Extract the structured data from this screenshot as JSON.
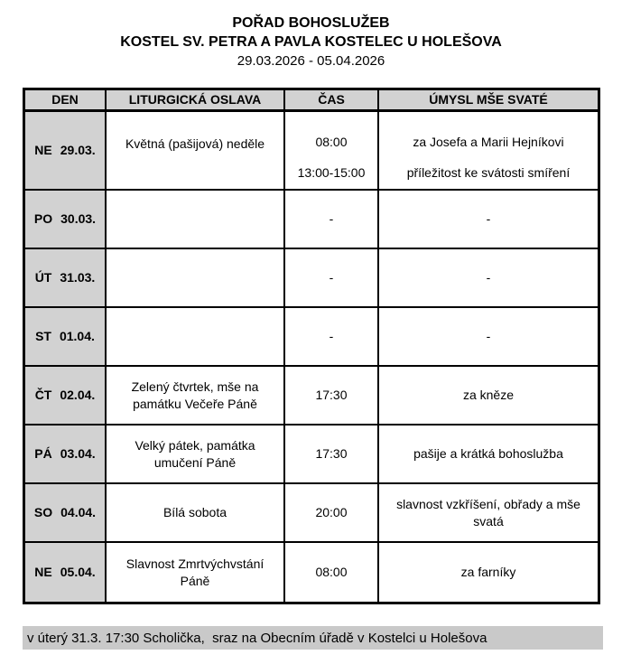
{
  "header": {
    "title": "POŘAD BOHOSLUŽEB",
    "subtitle": "KOSTEL SV. PETRA A PAVLA KOSTELEC U HOLEŠOVA",
    "date_range": "29.03.2026 - 05.04.2026"
  },
  "table": {
    "columns": [
      "DEN",
      "LITURGICKÁ OSLAVA",
      "ČAS",
      "ÚMYSL MŠE SVATÉ"
    ],
    "rows": [
      {
        "day": "NE",
        "date": "29.03.",
        "celebration": "Květná (pašijová) neděle",
        "entries": [
          {
            "time": "08:00",
            "intention": "za Josefa a Marii Hejníkovi"
          },
          {
            "time": "13:00-15:00",
            "intention": "příležitost ke svátosti smíření"
          }
        ]
      },
      {
        "day": "PO",
        "date": "30.03.",
        "celebration": "",
        "time": "-",
        "intention": "-"
      },
      {
        "day": "ÚT",
        "date": "31.03.",
        "celebration": "",
        "time": "-",
        "intention": "-"
      },
      {
        "day": "ST",
        "date": "01.04.",
        "celebration": "",
        "time": "-",
        "intention": "-"
      },
      {
        "day": "ČT",
        "date": "02.04.",
        "celebration": "Zelený čtvrtek, mše na památku Večeře Páně",
        "time": "17:30",
        "intention": "za kněze"
      },
      {
        "day": "PÁ",
        "date": "03.04.",
        "celebration": "Velký pátek, památka umučení Páně",
        "time": "17:30",
        "intention": "pašije a krátká bohoslužba"
      },
      {
        "day": "SO",
        "date": "04.04.",
        "celebration": "Bílá sobota",
        "time": "20:00",
        "intention": "slavnost vzkříšení, obřady a mše svatá"
      },
      {
        "day": "NE",
        "date": "05.04.",
        "celebration": "Slavnost Zmrtvýchvstání Páně",
        "time": "08:00",
        "intention": "za farníky"
      }
    ]
  },
  "footer": {
    "note": "v úterý 31.3. 17:30 Scholička,  sraz na Obecním úřadě v Kostelci u Holešova"
  },
  "colors": {
    "cell_gray": "#d2d2d2",
    "footer_gray": "#c9c9c9",
    "border": "#000000"
  }
}
